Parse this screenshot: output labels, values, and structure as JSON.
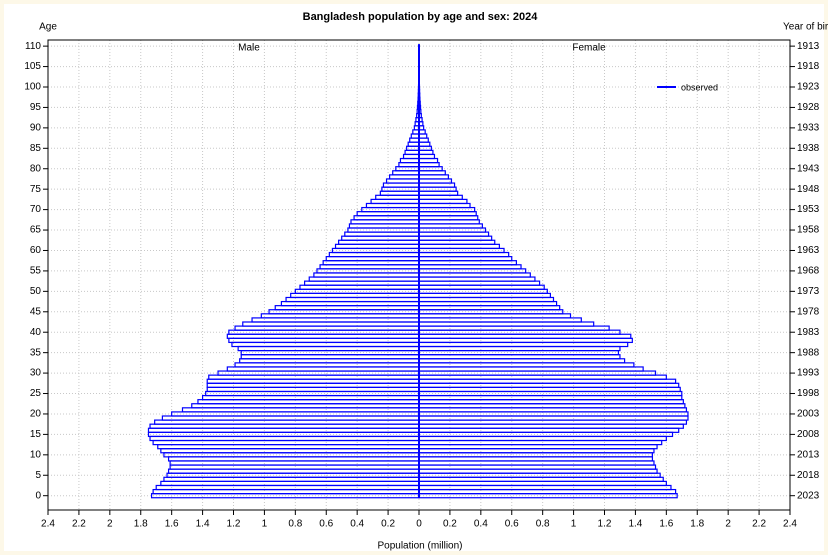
{
  "chart_data": {
    "type": "pyramid",
    "title": "Bangladesh population by age and sex: 2024",
    "y_label": "Age",
    "y2_label": "Year of birth",
    "x_label": "Population (million)",
    "legend": {
      "label": "observed",
      "color": "#0000ff",
      "position": "upper right"
    },
    "grid": true,
    "ages": [
      0,
      1,
      2,
      3,
      4,
      5,
      6,
      7,
      8,
      9,
      10,
      11,
      12,
      13,
      14,
      15,
      16,
      17,
      18,
      19,
      20,
      21,
      22,
      23,
      24,
      25,
      26,
      27,
      28,
      29,
      30,
      31,
      32,
      33,
      34,
      35,
      36,
      37,
      38,
      39,
      40,
      41,
      42,
      43,
      44,
      45,
      46,
      47,
      48,
      49,
      50,
      51,
      52,
      53,
      54,
      55,
      56,
      57,
      58,
      59,
      60,
      61,
      62,
      63,
      64,
      65,
      66,
      67,
      68,
      69,
      70,
      71,
      72,
      73,
      74,
      75,
      76,
      77,
      78,
      79,
      80,
      81,
      82,
      83,
      84,
      85,
      86,
      87,
      88,
      89,
      90,
      91,
      92,
      93,
      94,
      95,
      96,
      97,
      98,
      99,
      100,
      101,
      102,
      103,
      104,
      105,
      106,
      107,
      108,
      109,
      110
    ],
    "series": [
      {
        "name": "Male",
        "side": "left",
        "color": "#0000ff",
        "values": [
          1.73,
          1.72,
          1.7,
          1.67,
          1.65,
          1.63,
          1.62,
          1.61,
          1.61,
          1.62,
          1.65,
          1.67,
          1.69,
          1.72,
          1.74,
          1.75,
          1.75,
          1.74,
          1.71,
          1.66,
          1.6,
          1.53,
          1.47,
          1.43,
          1.4,
          1.38,
          1.37,
          1.37,
          1.37,
          1.36,
          1.3,
          1.24,
          1.19,
          1.16,
          1.15,
          1.15,
          1.17,
          1.21,
          1.23,
          1.24,
          1.23,
          1.19,
          1.14,
          1.08,
          1.02,
          0.97,
          0.93,
          0.89,
          0.86,
          0.83,
          0.8,
          0.77,
          0.74,
          0.71,
          0.68,
          0.66,
          0.64,
          0.62,
          0.6,
          0.58,
          0.56,
          0.54,
          0.52,
          0.5,
          0.48,
          0.46,
          0.45,
          0.44,
          0.42,
          0.4,
          0.37,
          0.34,
          0.31,
          0.28,
          0.25,
          0.24,
          0.23,
          0.21,
          0.19,
          0.17,
          0.15,
          0.13,
          0.12,
          0.1,
          0.09,
          0.08,
          0.07,
          0.06,
          0.05,
          0.04,
          0.03,
          0.025,
          0.02,
          0.015,
          0.012,
          0.01,
          0.008,
          0.006,
          0.005,
          0.004,
          0.003,
          0.002,
          0.002,
          0.001,
          0.001,
          0.001,
          0,
          0,
          0,
          0,
          0
        ]
      },
      {
        "name": "Female",
        "side": "right",
        "color": "#0000ff",
        "values": [
          1.67,
          1.66,
          1.63,
          1.6,
          1.58,
          1.56,
          1.54,
          1.53,
          1.52,
          1.51,
          1.51,
          1.52,
          1.54,
          1.57,
          1.6,
          1.64,
          1.68,
          1.71,
          1.73,
          1.74,
          1.74,
          1.73,
          1.72,
          1.71,
          1.7,
          1.7,
          1.69,
          1.68,
          1.66,
          1.6,
          1.53,
          1.45,
          1.39,
          1.33,
          1.3,
          1.29,
          1.3,
          1.35,
          1.38,
          1.37,
          1.3,
          1.23,
          1.13,
          1.05,
          0.98,
          0.93,
          0.91,
          0.89,
          0.87,
          0.85,
          0.83,
          0.81,
          0.78,
          0.75,
          0.72,
          0.69,
          0.66,
          0.63,
          0.6,
          0.58,
          0.55,
          0.52,
          0.49,
          0.47,
          0.45,
          0.43,
          0.41,
          0.39,
          0.38,
          0.37,
          0.36,
          0.33,
          0.31,
          0.28,
          0.25,
          0.24,
          0.23,
          0.21,
          0.19,
          0.17,
          0.15,
          0.13,
          0.12,
          0.1,
          0.09,
          0.08,
          0.07,
          0.06,
          0.05,
          0.04,
          0.03,
          0.025,
          0.02,
          0.015,
          0.012,
          0.01,
          0.008,
          0.006,
          0.005,
          0.004,
          0.003,
          0.002,
          0.002,
          0.001,
          0.001,
          0.001,
          0,
          0,
          0,
          0,
          0
        ]
      }
    ],
    "xlim": [
      -2.4,
      2.4
    ],
    "xticks": [
      {
        "value": -2.4,
        "label": "2.4"
      },
      {
        "value": -2.2,
        "label": "2.2"
      },
      {
        "value": -2,
        "label": "2"
      },
      {
        "value": -1.8,
        "label": "1.8"
      },
      {
        "value": -1.6,
        "label": "1.6"
      },
      {
        "value": -1.4,
        "label": "1.4"
      },
      {
        "value": -1.2,
        "label": "1.2"
      },
      {
        "value": -1,
        "label": "1"
      },
      {
        "value": -0.8,
        "label": "0.8"
      },
      {
        "value": -0.6,
        "label": "0.6"
      },
      {
        "value": -0.4,
        "label": "0.4"
      },
      {
        "value": -0.2,
        "label": "0.2"
      },
      0,
      0.2,
      0.4,
      0.6,
      0.8,
      1,
      1.2,
      1.4,
      1.6,
      1.8,
      2,
      2.2,
      2.4
    ],
    "ylim": [
      -3.5,
      111.5
    ],
    "yticks": [
      0,
      5,
      10,
      15,
      20,
      25,
      30,
      35,
      40,
      45,
      50,
      55,
      60,
      65,
      70,
      75,
      80,
      85,
      90,
      95,
      100,
      105,
      110
    ],
    "y2lim": [
      2026.5,
      1911.5
    ],
    "y2ticks": [
      1913,
      1918,
      1923,
      1928,
      1933,
      1938,
      1943,
      1948,
      1953,
      1958,
      1963,
      1968,
      1973,
      1978,
      1983,
      1988,
      1993,
      1998,
      2003,
      2008,
      2013,
      2018,
      2023
    ]
  }
}
